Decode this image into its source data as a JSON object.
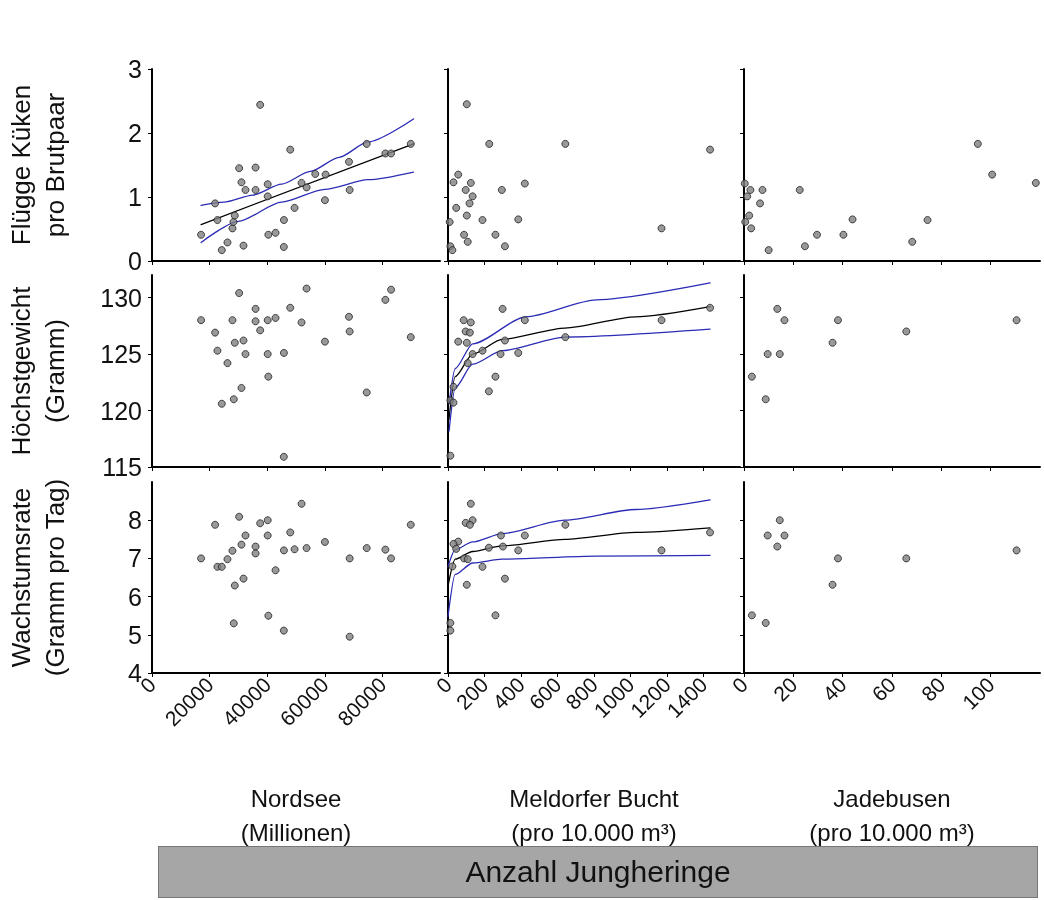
{
  "chart_data": [
    {
      "type": "scatter",
      "ylabel": "Flügge Küken\npro Brutpaar",
      "xlim": [
        0,
        100000
      ],
      "xticks": [
        0,
        20000,
        40000,
        60000,
        80000
      ],
      "ylim": [
        0,
        3
      ],
      "yticks": [
        0,
        1,
        2,
        3
      ],
      "tick_labels": "y",
      "marker": "circle",
      "series": [
        {
          "type": "scatter",
          "color": "#808080",
          "x": [
            17040,
            21910,
            22720,
            24240,
            26200,
            27940,
            28290,
            28750,
            30260,
            31070,
            31770,
            32460,
            35960,
            35960,
            37560,
            40170,
            40170,
            40400,
            42890,
            45770,
            45810,
            48000,
            49500,
            51930,
            53670,
            56690,
            60050,
            60280,
            68400,
            68630,
            74550,
            81040,
            83010,
            89860
          ],
          "values": [
            0.41,
            0.9,
            0.64,
            0.17,
            0.29,
            0.51,
            0.61,
            0.71,
            1.45,
            1.23,
            0.24,
            1.11,
            1.11,
            1.46,
            2.44,
            1.2,
            1.01,
            0.41,
            0.44,
            0.22,
            0.64,
            1.74,
            0.83,
            1.22,
            1.15,
            1.36,
            0.95,
            1.35,
            1.55,
            1.11,
            1.83,
            1.68,
            1.68,
            1.83
          ]
        },
        {
          "type": "line",
          "color": "#000000",
          "marker": "none",
          "x": [
            17040,
            90800
          ],
          "values": [
            0.57,
            1.83
          ]
        },
        {
          "type": "line",
          "color": "#2b2bb5",
          "marker": "none",
          "x": [
            17040,
            25000,
            35000,
            45000,
            55000,
            65000,
            75000,
            90800
          ],
          "values": [
            0.87,
            0.92,
            1.03,
            1.2,
            1.4,
            1.62,
            1.86,
            2.22
          ]
        },
        {
          "type": "line",
          "color": "#2b2bb5",
          "marker": "none",
          "x": [
            17040,
            30000,
            45000,
            60000,
            75000,
            90800
          ],
          "values": [
            0.29,
            0.62,
            0.92,
            1.12,
            1.27,
            1.39
          ]
        }
      ]
    },
    {
      "type": "scatter",
      "xlim": [
        0,
        1600
      ],
      "xticks": [
        0,
        200,
        400,
        600,
        800,
        1000,
        1200,
        1400
      ],
      "ylim": [
        0,
        3
      ],
      "yticks": [
        0,
        1,
        2,
        3
      ],
      "tick_labels": false,
      "marker": "circle",
      "series": [
        {
          "type": "scatter",
          "color": "#808080",
          "x": [
            103,
            226,
            643,
            1436,
            56,
            30,
            125,
            97,
            295,
            421,
            135,
            118,
            45,
            103,
            189,
            385,
            9,
            88,
            260,
            108,
            312,
            13,
            24,
            1170
          ],
          "values": [
            2.45,
            1.83,
            1.83,
            1.74,
            1.35,
            1.23,
            1.22,
            1.11,
            1.11,
            1.21,
            1.01,
            0.9,
            0.83,
            0.71,
            0.64,
            0.65,
            0.61,
            0.41,
            0.41,
            0.3,
            0.23,
            0.23,
            0.17,
            0.51
          ]
        }
      ]
    },
    {
      "type": "scatter",
      "xlim": [
        0,
        120
      ],
      "xticks": [
        0,
        20,
        40,
        60,
        80,
        100
      ],
      "ylim": [
        0,
        3
      ],
      "yticks": [
        0,
        1,
        2,
        3
      ],
      "tick_labels": false,
      "marker": "circle",
      "series": [
        {
          "type": "scatter",
          "color": "#808080",
          "x": [
            94.8,
            100.6,
            118.3,
            0.3,
            2.6,
            7.5,
            22.6,
            1.3,
            6.5,
            2.1,
            0.5,
            2.9,
            44,
            74.4,
            29.6,
            40.3,
            68.2,
            10,
            24.7
          ],
          "values": [
            1.83,
            1.35,
            1.22,
            1.21,
            1.11,
            1.11,
            1.11,
            1.01,
            0.9,
            0.71,
            0.61,
            0.51,
            0.65,
            0.64,
            0.41,
            0.41,
            0.3,
            0.17,
            0.23
          ]
        }
      ]
    },
    {
      "type": "scatter",
      "ylabel": "Höchstgewicht\n(Gramm)",
      "xlim": [
        0,
        100000
      ],
      "xticks": [
        0,
        20000,
        40000,
        60000,
        80000
      ],
      "ylim": [
        115,
        132
      ],
      "yticks": [
        115,
        120,
        125,
        130
      ],
      "tick_labels": "y",
      "marker": "circle",
      "series": [
        {
          "type": "scatter",
          "color": "#808080",
          "x": [
            17040,
            21910,
            22720,
            24240,
            26200,
            27940,
            28400,
            28750,
            30260,
            31070,
            31770,
            32460,
            35960,
            35960,
            37560,
            40170,
            40170,
            40400,
            42890,
            45770,
            45810,
            48000,
            51930,
            53670,
            60050,
            68400,
            68630,
            74550,
            81040,
            83010,
            89860
          ],
          "values": [
            128,
            126.9,
            125.3,
            120.6,
            124.2,
            128,
            121,
            126,
            130.4,
            122,
            126.2,
            125,
            129,
            127.9,
            127.1,
            128,
            125,
            123,
            128.2,
            115.9,
            125.1,
            129.1,
            127.8,
            130.8,
            126.1,
            128.3,
            127,
            121.6,
            129.8,
            130.7,
            126.5
          ]
        }
      ]
    },
    {
      "type": "scatter",
      "xlim": [
        0,
        1600
      ],
      "xticks": [
        0,
        200,
        400,
        600,
        800,
        1000,
        1200,
        1400
      ],
      "ylim": [
        115,
        132
      ],
      "yticks": [
        115,
        120,
        125,
        130
      ],
      "tick_labels": false,
      "marker": "circle",
      "series": [
        {
          "type": "scatter",
          "color": "#808080",
          "x": [
            1436,
            299,
            86,
            125,
            421,
            1170,
            97,
            120,
            56,
            103,
            312,
            643,
            189,
            135,
            288,
            385,
            108,
            260,
            30,
            224,
            13,
            30,
            13
          ],
          "values": [
            129.1,
            129,
            128,
            127.8,
            128,
            128,
            127,
            126.9,
            126.1,
            126,
            126.2,
            126.5,
            125.3,
            125,
            125,
            125.1,
            124.2,
            123,
            122.1,
            121.7,
            120.9,
            120.7,
            116
          ]
        },
        {
          "type": "line",
          "color": "#000000",
          "marker": "none",
          "x": [
            5,
            39,
            135,
            297,
            641,
            1028,
            1436
          ],
          "values": [
            119.2,
            123,
            125,
            126.3,
            127.3,
            128.3,
            129.2
          ]
        },
        {
          "type": "line",
          "color": "#2b2bb5",
          "marker": "none",
          "x": [
            6,
            39,
            135,
            426,
            813,
            1436
          ],
          "values": [
            120.6,
            123.7,
            125.9,
            128.3,
            129.8,
            131.3
          ]
        },
        {
          "type": "line",
          "color": "#2b2bb5",
          "marker": "none",
          "x": [
            6,
            39,
            135,
            297,
            641,
            1436
          ],
          "values": [
            118.2,
            122,
            124.1,
            125.3,
            126.5,
            127.2
          ]
        }
      ]
    },
    {
      "type": "scatter",
      "xlim": [
        0,
        120
      ],
      "xticks": [
        0,
        20,
        40,
        60,
        80,
        100
      ],
      "ylim": [
        115,
        132
      ],
      "yticks": [
        115,
        120,
        125,
        130
      ],
      "tick_labels": false,
      "marker": "circle",
      "series": [
        {
          "type": "scatter",
          "color": "#808080",
          "x": [
            13.5,
            16.4,
            38.1,
            110.5,
            65.8,
            35.9,
            9.6,
            14.5,
            3.2,
            8.8
          ],
          "values": [
            129,
            128,
            128,
            128,
            127,
            126,
            125,
            125,
            123,
            121
          ]
        }
      ]
    },
    {
      "type": "scatter",
      "ylabel": "Wachstumsrate\n(Gramm pro Tag)",
      "xlabel": "Nordsee\n(Millionen)",
      "xlim": [
        0,
        100000
      ],
      "xticks": [
        0,
        20000,
        40000,
        60000,
        80000
      ],
      "ylim": [
        4,
        9
      ],
      "yticks": [
        4,
        5,
        6,
        7,
        8
      ],
      "marker": "circle",
      "series": [
        {
          "type": "scatter",
          "color": "#808080",
          "x": [
            17040,
            21910,
            22720,
            24240,
            26200,
            27940,
            28750,
            28400,
            30260,
            31070,
            31770,
            32460,
            35960,
            35960,
            37560,
            40170,
            40170,
            40400,
            42890,
            45770,
            45810,
            48000,
            49500,
            51930,
            53670,
            60050,
            68630,
            68630,
            74550,
            81040,
            83010,
            89860
          ],
          "values": [
            7,
            7.88,
            6.78,
            6.78,
            6.98,
            7.2,
            6.29,
            5.3,
            8.09,
            7.36,
            6.47,
            7.6,
            7.31,
            7.13,
            7.92,
            8,
            7.6,
            5.5,
            6.69,
            5.11,
            7.21,
            7.68,
            7.24,
            8.43,
            7.27,
            7.43,
            7,
            4.95,
            7.27,
            7.23,
            7,
            7.88
          ]
        }
      ]
    },
    {
      "type": "scatter",
      "xlabel": "Meldorfer Bucht\n(pro 10.000 m³)",
      "annotations": [
        "Anzahl Jungheringe"
      ],
      "xlim": [
        0,
        1600
      ],
      "xticks": [
        0,
        200,
        400,
        600,
        800,
        1000,
        1200,
        1400
      ],
      "ylim": [
        4,
        9
      ],
      "yticks": [
        4,
        5,
        6,
        7,
        8
      ],
      "tick_labels": "x",
      "marker": "circle",
      "series": [
        {
          "type": "scatter",
          "color": "#808080",
          "x": [
            125,
            135,
            97,
            120,
            643,
            1436,
            290,
            421,
            56,
            30,
            45,
            224,
            301,
            385,
            1170,
            88,
            108,
            24,
            189,
            312,
            103,
            260,
            13,
            13
          ],
          "values": [
            8.43,
            8,
            7.93,
            7.88,
            7.88,
            7.68,
            7.6,
            7.6,
            7.44,
            7.38,
            7.25,
            7.28,
            7.31,
            7.21,
            7.21,
            7,
            6.98,
            6.79,
            6.78,
            6.47,
            6.31,
            5.51,
            5.31,
            5.11
          ]
        },
        {
          "type": "line",
          "color": "#000000",
          "marker": "none",
          "x": [
            0,
            39,
            135,
            297,
            641,
            1028,
            1436
          ],
          "values": [
            6.28,
            6.98,
            7.18,
            7.33,
            7.5,
            7.68,
            7.8
          ]
        },
        {
          "type": "line",
          "color": "#2b2bb5",
          "marker": "none",
          "x": [
            0,
            39,
            135,
            297,
            641,
            1028,
            1436
          ],
          "values": [
            6.78,
            7.23,
            7.43,
            7.65,
            8,
            8.28,
            8.53
          ]
        },
        {
          "type": "line",
          "color": "#2b2bb5",
          "marker": "none",
          "x": [
            0,
            39,
            135,
            297,
            813,
            1436
          ],
          "values": [
            5.48,
            6.58,
            6.88,
            6.98,
            7.06,
            7.08
          ]
        }
      ]
    },
    {
      "type": "scatter",
      "xlabel": "Jadebusen\n(pro 10.000 m³)",
      "xlim": [
        0,
        120
      ],
      "xticks": [
        0,
        20,
        40,
        60,
        80,
        100
      ],
      "ylim": [
        4,
        9
      ],
      "yticks": [
        4,
        5,
        6,
        7,
        8
      ],
      "tick_labels": "x",
      "marker": "circle",
      "series": [
        {
          "type": "scatter",
          "color": "#808080",
          "x": [
            14.5,
            9.6,
            16.4,
            13.5,
            110.5,
            38.1,
            65.8,
            35.9,
            3.2,
            8.8
          ],
          "values": [
            8,
            7.6,
            7.6,
            7.31,
            7.21,
            7,
            7,
            6.31,
            5.51,
            5.31
          ]
        }
      ]
    }
  ]
}
